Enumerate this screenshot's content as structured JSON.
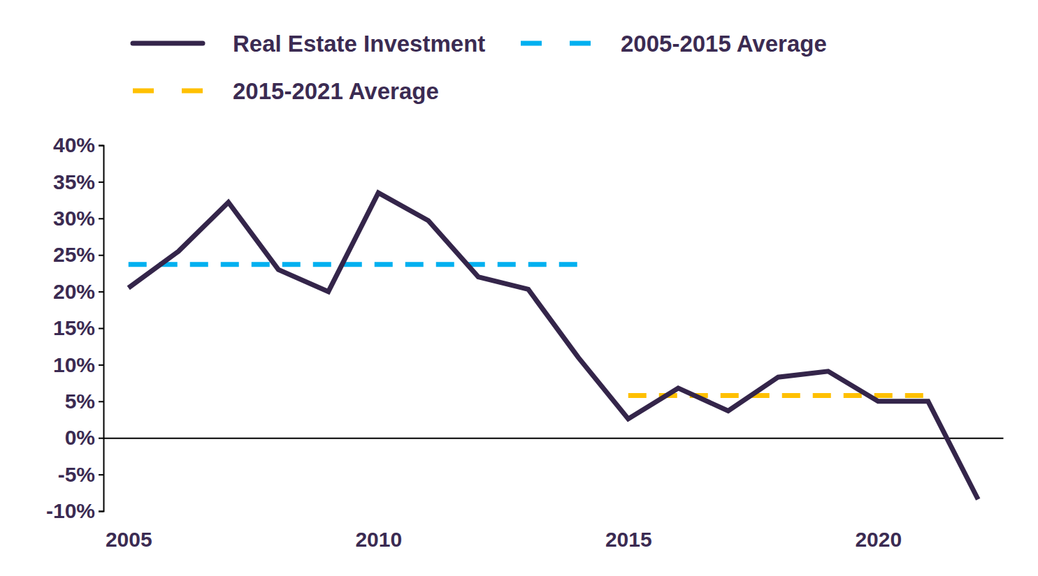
{
  "chart_data": {
    "type": "line",
    "x": [
      2005,
      2006,
      2007,
      2008,
      2009,
      2010,
      2011,
      2012,
      2013,
      2014,
      2015,
      2016,
      2017,
      2018,
      2019,
      2020,
      2021,
      2022
    ],
    "series": [
      {
        "name": "Real Estate Investment",
        "color": "#34254a",
        "line_style": "solid",
        "values": [
          20.5,
          25.5,
          32.2,
          23,
          20,
          33.5,
          29.7,
          22,
          20.3,
          11,
          2.6,
          6.8,
          3.7,
          8.3,
          9.1,
          5,
          5,
          -8.4
        ]
      },
      {
        "name": "2005-2015 Average",
        "color": "#00b0f0",
        "line_style": "dashed",
        "values": [
          23.7,
          23.7,
          23.7,
          23.7,
          23.7,
          23.7,
          23.7,
          23.7,
          23.7,
          23.7,
          null,
          null,
          null,
          null,
          null,
          null,
          null,
          null
        ]
      },
      {
        "name": "2015-2021 Average",
        "color": "#ffc000",
        "line_style": "dashed",
        "values": [
          null,
          null,
          null,
          null,
          null,
          null,
          null,
          null,
          null,
          null,
          5.8,
          5.8,
          5.8,
          5.8,
          5.8,
          5.8,
          5.8,
          null
        ]
      }
    ],
    "xlim": [
      2004.5,
      2022.5
    ],
    "xticks": [
      2005,
      2010,
      2015,
      2020
    ],
    "ylim": [
      -10,
      40
    ],
    "yticks": [
      {
        "value": -10,
        "label": "-10%"
      },
      {
        "value": -5,
        "label": "-5%"
      },
      {
        "value": 0,
        "label": "0%"
      },
      {
        "value": 5,
        "label": "5%"
      },
      {
        "value": 10,
        "label": "10%"
      },
      {
        "value": 15,
        "label": "15%"
      },
      {
        "value": 20,
        "label": "20%"
      },
      {
        "value": 25,
        "label": "25%"
      },
      {
        "value": 30,
        "label": "30%"
      },
      {
        "value": 35,
        "label": "35%"
      },
      {
        "value": 40,
        "label": "40%"
      }
    ],
    "grid": false,
    "legend": "top"
  }
}
